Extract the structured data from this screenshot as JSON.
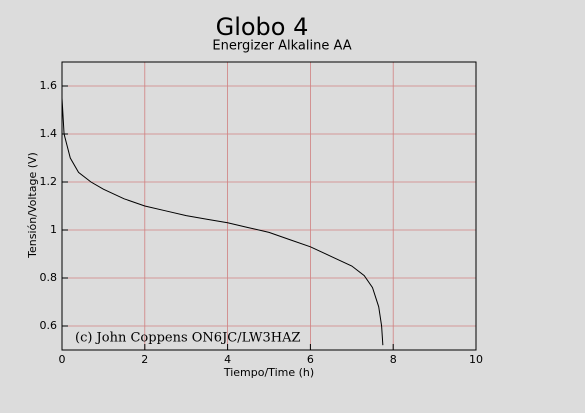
{
  "chart_data": {
    "type": "line",
    "title": "Globo 4",
    "subtitle": "Energizer Alkaline AA",
    "x_label": "Tiempo/Time (h)",
    "y_label": "Tensión/Voltage (V)",
    "annotation": "(c) John Coppens ON6JC/LW3HAZ",
    "x": [
      0,
      0.05,
      0.2,
      0.4,
      0.7,
      1,
      1.5,
      2,
      2.5,
      3,
      3.5,
      4,
      4.5,
      5,
      5.5,
      6,
      6.5,
      7,
      7.3,
      7.5,
      7.65,
      7.72,
      7.75
    ],
    "series": [
      {
        "name": "Energizer Alkaline AA",
        "color": "#000000",
        "values": [
          1.55,
          1.4,
          1.3,
          1.24,
          1.2,
          1.17,
          1.13,
          1.1,
          1.08,
          1.06,
          1.045,
          1.03,
          1.01,
          0.99,
          0.96,
          0.93,
          0.89,
          0.85,
          0.81,
          0.76,
          0.68,
          0.6,
          0.52
        ]
      }
    ],
    "xlim": [
      0,
      10
    ],
    "xticks": [
      0,
      2,
      4,
      6,
      8,
      10
    ],
    "ylim": [
      0.5,
      1.7
    ],
    "yticks": [
      0.6,
      0.8,
      1,
      1.2,
      1.4,
      1.6
    ],
    "grid": true,
    "grid_color": "#d08080"
  }
}
